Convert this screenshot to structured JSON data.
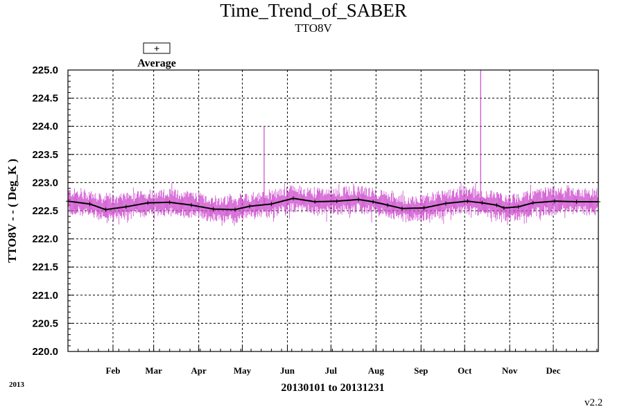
{
  "chart_data": {
    "type": "line",
    "title": "Time_Trend_of_SABER",
    "subtitle": "TTO8V",
    "ylabel": "TTO8V - - ( Deg_K )",
    "xlabel": "20130101 to 20131231",
    "year_label": "2013",
    "version_label": "v2.2",
    "legend": {
      "symbol": "+",
      "label": "Average",
      "placement": "top-left"
    },
    "ylim": [
      220.0,
      225.0
    ],
    "ytick_labels": [
      "220.0",
      "220.5",
      "221.0",
      "221.5",
      "222.0",
      "222.5",
      "223.0",
      "223.5",
      "224.0",
      "224.5",
      "225.0"
    ],
    "x_range_days": [
      0,
      365
    ],
    "xtick_days": [
      31,
      59,
      90,
      120,
      151,
      181,
      212,
      243,
      273,
      304,
      334
    ],
    "xtick_labels": [
      "Feb",
      "Mar",
      "Apr",
      "May",
      "Jun",
      "Jul",
      "Aug",
      "Sep",
      "Oct",
      "Nov",
      "Dec"
    ],
    "grid": true,
    "colors": {
      "range": "#cc44cc",
      "average": "#000000"
    },
    "series": [
      {
        "name": "Average",
        "x": [
          0,
          15,
          26,
          40,
          55,
          70,
          85,
          100,
          115,
          125,
          140,
          155,
          170,
          185,
          200,
          210,
          220,
          230,
          245,
          260,
          275,
          285,
          295,
          300,
          310,
          320,
          335,
          350,
          365
        ],
        "values": [
          222.67,
          222.62,
          222.52,
          222.57,
          222.64,
          222.65,
          222.6,
          222.53,
          222.52,
          222.58,
          222.62,
          222.72,
          222.66,
          222.67,
          222.7,
          222.66,
          222.6,
          222.54,
          222.55,
          222.63,
          222.67,
          222.64,
          222.6,
          222.55,
          222.57,
          222.64,
          222.67,
          222.66,
          222.66
        ]
      }
    ],
    "spikes": [
      {
        "x": 135,
        "value": 224.0
      },
      {
        "x": 284,
        "value": 225.0
      }
    ]
  }
}
